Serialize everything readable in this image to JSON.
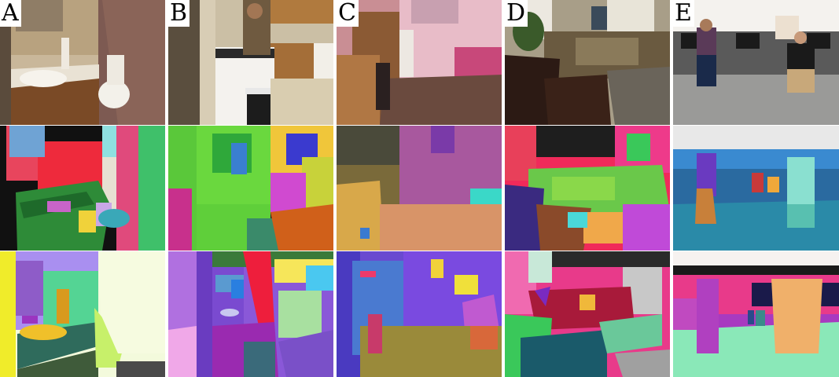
{
  "figure": {
    "columns": [
      {
        "label": "A"
      },
      {
        "label": "B"
      },
      {
        "label": "C"
      },
      {
        "label": "D"
      },
      {
        "label": "E"
      }
    ]
  }
}
